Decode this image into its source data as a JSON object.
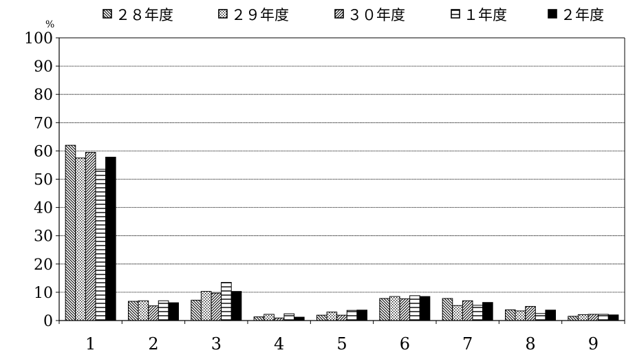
{
  "chart_data": {
    "type": "bar",
    "unit": "%",
    "categories": [
      "1",
      "2",
      "3",
      "4",
      "5",
      "6",
      "7",
      "8",
      "9"
    ],
    "series": [
      {
        "name": "２８年度",
        "pattern": "diag-down",
        "values": [
          62.0,
          6.8,
          7.2,
          1.3,
          1.9,
          7.8,
          7.8,
          3.8,
          1.5
        ]
      },
      {
        "name": "２９年度",
        "pattern": "dots",
        "values": [
          57.5,
          7.0,
          10.3,
          2.2,
          3.0,
          8.5,
          5.3,
          3.4,
          2.1
        ]
      },
      {
        "name": "３０年度",
        "pattern": "diag-up",
        "values": [
          59.5,
          5.2,
          9.7,
          0.9,
          1.9,
          7.7,
          7.0,
          5.0,
          2.2
        ]
      },
      {
        "name": "１年度",
        "pattern": "horiz",
        "values": [
          53.5,
          7.0,
          13.5,
          2.4,
          3.6,
          8.8,
          5.4,
          2.5,
          2.2
        ]
      },
      {
        "name": "２年度",
        "pattern": "solid",
        "values": [
          57.8,
          6.3,
          10.3,
          1.2,
          3.7,
          8.5,
          6.4,
          3.7,
          2.0
        ]
      }
    ],
    "ylim": [
      0,
      100
    ],
    "yticks": [
      0,
      10,
      20,
      30,
      40,
      50,
      60,
      70,
      80,
      90,
      100
    ],
    "grid": true,
    "legend": "top"
  }
}
